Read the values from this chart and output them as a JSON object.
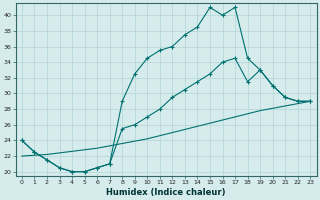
{
  "xlabel": "Humidex (Indice chaleur)",
  "xlim": [
    -0.5,
    23.5
  ],
  "ylim": [
    19.5,
    41.5
  ],
  "bg_color": "#d6ecec",
  "line_color": "#007070",
  "grid_color": "#b8d8d8",
  "yticks": [
    20,
    22,
    24,
    26,
    28,
    30,
    32,
    34,
    36,
    38,
    40
  ],
  "xticks": [
    0,
    1,
    2,
    3,
    4,
    5,
    6,
    7,
    8,
    9,
    10,
    11,
    12,
    13,
    14,
    15,
    16,
    17,
    18,
    19,
    20,
    21,
    22,
    23
  ],
  "curve1_x": [
    0,
    1,
    2,
    3,
    4,
    5,
    6,
    7,
    8,
    9,
    10,
    11,
    12,
    13,
    14,
    15,
    16,
    17,
    18,
    19,
    20,
    21,
    22,
    23
  ],
  "curve1_y": [
    24.0,
    22.5,
    21.5,
    20.5,
    20.0,
    20.0,
    20.5,
    21.0,
    29.0,
    32.5,
    34.5,
    35.5,
    36.0,
    37.5,
    38.5,
    41.0,
    40.0,
    41.0,
    34.5,
    33.0,
    31.0,
    29.5,
    29.0,
    29.0
  ],
  "curve2_x": [
    0,
    1,
    2,
    3,
    4,
    5,
    6,
    7,
    8,
    9,
    10,
    11,
    12,
    13,
    14,
    15,
    16,
    17,
    18,
    19,
    20,
    21,
    22,
    23
  ],
  "curve2_y": [
    24.0,
    22.5,
    21.5,
    20.5,
    20.0,
    20.0,
    20.5,
    21.0,
    25.5,
    26.0,
    27.0,
    28.0,
    29.5,
    30.5,
    31.5,
    32.5,
    34.0,
    34.5,
    31.5,
    33.0,
    31.0,
    29.5,
    29.0,
    29.0
  ],
  "curve3_x": [
    0,
    1,
    2,
    3,
    4,
    5,
    6,
    7,
    8,
    9,
    10,
    11,
    12,
    13,
    14,
    15,
    16,
    17,
    18,
    19,
    20,
    21,
    22,
    23
  ],
  "curve3_y": [
    22.0,
    22.1,
    22.2,
    22.4,
    22.6,
    22.8,
    23.0,
    23.3,
    23.6,
    23.9,
    24.2,
    24.6,
    25.0,
    25.4,
    25.8,
    26.2,
    26.6,
    27.0,
    27.4,
    27.8,
    28.1,
    28.4,
    28.7,
    29.0
  ]
}
